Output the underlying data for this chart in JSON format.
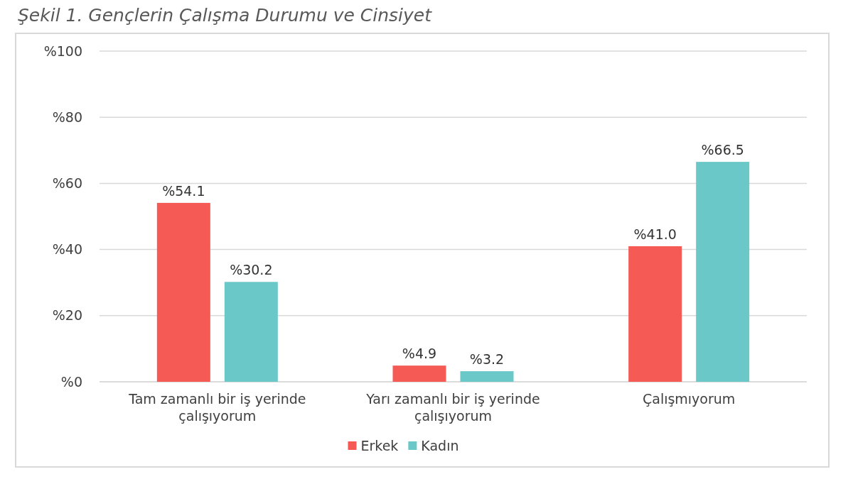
{
  "chart_data": {
    "type": "bar",
    "title": "Şekil 1. Gençlerin Çalışma Durumu ve Cinsiyet",
    "categories": [
      "Tam zamanlı bir iş yerinde çalışıyorum",
      "Yarı zamanlı bir iş yerinde çalışıyorum",
      "Çalışmıyorum"
    ],
    "series": [
      {
        "name": "Erkek",
        "color": "#f55a55",
        "values": [
          54.1,
          4.9,
          41.0
        ],
        "value_labels": [
          "%54.1",
          "%4.9",
          "%41.0"
        ]
      },
      {
        "name": "Kadın",
        "color": "#6bc8c9",
        "values": [
          30.2,
          3.2,
          66.5
        ],
        "value_labels": [
          "%30.2",
          "%3.2",
          "%66.5"
        ]
      }
    ],
    "ylim": [
      0,
      100
    ],
    "yticks": [
      {
        "value": 0,
        "label": "%0"
      },
      {
        "value": 20,
        "label": "%20"
      },
      {
        "value": 40,
        "label": "%40"
      },
      {
        "value": 60,
        "label": "%60"
      },
      {
        "value": 80,
        "label": "%80"
      },
      {
        "value": 100,
        "label": "%100"
      }
    ],
    "grid": "y",
    "legend": "bottom"
  }
}
